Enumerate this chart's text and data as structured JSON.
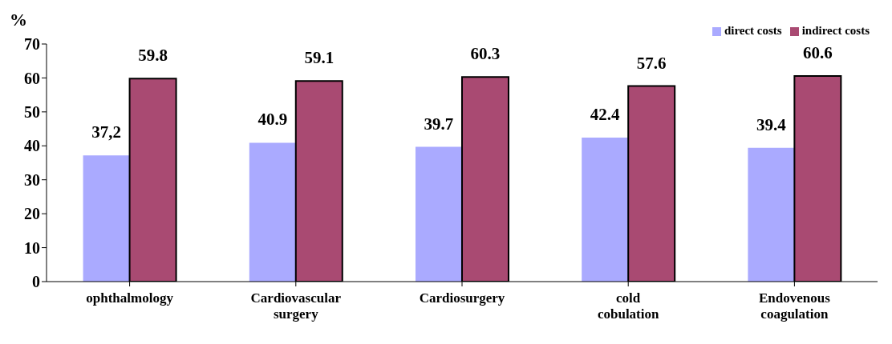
{
  "chart_data": {
    "type": "bar",
    "ylabel": "%",
    "categories": [
      "ophthalmology",
      "Cardiovascular surgery",
      "Cardiosurgery",
      "cold cobulation",
      "Endovenous coagulation"
    ],
    "series": [
      {
        "name": "direct costs",
        "color": "#aaaaff",
        "values": [
          37.2,
          40.9,
          39.7,
          42.4,
          39.4
        ],
        "value_labels": [
          "37,2",
          "40.9",
          "39.7",
          "42.4",
          "39.4"
        ]
      },
      {
        "name": "indirect costs",
        "color": "#a94a72",
        "values": [
          59.8,
          59.1,
          60.3,
          57.6,
          60.6
        ],
        "value_labels": [
          "59.8",
          "59.1",
          "60.3",
          "57.6",
          "60.6"
        ]
      }
    ],
    "ylim": [
      0,
      70
    ],
    "yticks": [
      0,
      10,
      20,
      30,
      40,
      50,
      60,
      70
    ],
    "legend": "top right",
    "grid": false
  }
}
